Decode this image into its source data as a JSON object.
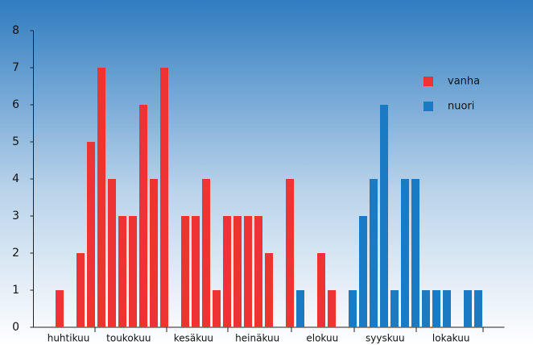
{
  "chart_data": {
    "type": "bar",
    "x": [
      0,
      2,
      3,
      4,
      5,
      6,
      7,
      8,
      9,
      10,
      12,
      13,
      14,
      15,
      16,
      17,
      18,
      19,
      20,
      22,
      23,
      25,
      26,
      28,
      29,
      30,
      31,
      32,
      33,
      34,
      35,
      36,
      37,
      39,
      40
    ],
    "series": [
      {
        "name": "vanha",
        "color": "#ee3333",
        "values": [
          1,
          2,
          5,
          7,
          4,
          3,
          3,
          6,
          4,
          7,
          3,
          3,
          4,
          1,
          3,
          3,
          3,
          3,
          2,
          4,
          null,
          2,
          1,
          null,
          null,
          null,
          null,
          null,
          null,
          null,
          null,
          null,
          null,
          null,
          null
        ]
      },
      {
        "name": "nuori",
        "color": "#1a7ac4",
        "values": [
          null,
          null,
          null,
          null,
          null,
          null,
          null,
          null,
          null,
          null,
          null,
          null,
          null,
          null,
          null,
          null,
          null,
          null,
          null,
          null,
          1,
          null,
          null,
          1,
          3,
          4,
          6,
          1,
          4,
          4,
          1,
          1,
          1,
          1,
          1
        ]
      }
    ],
    "xlim": [
      -2.5,
      42.5
    ],
    "xticks": [
      {
        "value": 0.85,
        "label": "huhtikuu"
      },
      {
        "value": 6.6,
        "label": "toukokuu"
      },
      {
        "value": 12.8,
        "label": "kesäkuu"
      },
      {
        "value": 18.9,
        "label": "heinäkuu"
      },
      {
        "value": 25.1,
        "label": "elokuu"
      },
      {
        "value": 31.1,
        "label": "syyskuu"
      },
      {
        "value": 37.4,
        "label": "lokakuu"
      }
    ],
    "ylim": [
      0,
      8
    ],
    "yticks": [
      0,
      1,
      2,
      3,
      4,
      5,
      6,
      7,
      8
    ],
    "legend": "upper right"
  }
}
